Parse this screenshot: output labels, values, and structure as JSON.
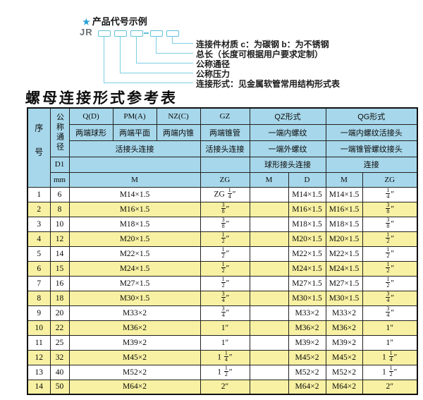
{
  "diagram": {
    "star_icon": "★",
    "heading": "产品代号示例",
    "code_prefix": "JR",
    "labels": [
      "连接件材质  c：为碳钢  b：为不锈钢",
      "总长（长度可根据用户要求定制）",
      "公称通径",
      "公称压力",
      "连接形式：见金属软管常用结构形式表"
    ]
  },
  "table_title": "螺母连接形式参考表",
  "colors": {
    "header_bg": "#a7d7ea",
    "alt_row_bg": "#f8f1a3",
    "leader_line": "#7ccfe4",
    "star_blue": "#2aa0d8"
  },
  "table": {
    "header": {
      "seq": "序号",
      "nominal": "公称通径",
      "d1": "D1",
      "mm": "mm",
      "q_code": "Q(D)",
      "pm_code": "PM(A)",
      "nz_code": "NZ(C)",
      "gz_code": "GZ",
      "qz_code": "QZ形式",
      "qg_code": "QG形式",
      "q_desc": "两端球形",
      "pm_desc": "两端平面",
      "nz_desc": "两端内锥",
      "gz_desc": "两端锥管",
      "qz_desc": "一端内螺纹",
      "qg_desc": "一端内螺纹活接头",
      "union_conn": "活接头连接",
      "gz_conn": "活接头连接",
      "qz_ext": "一端外螺纹",
      "qg_taper": "一端锥管螺纹接头",
      "qz_ball": "球形接头连接",
      "qg_conn2": "连接",
      "m_main": "M",
      "zg_gz": "ZG",
      "qz_m": "M",
      "qz_d": "D",
      "qg_m": "M",
      "qg_zg": "ZG"
    },
    "rows": [
      {
        "no": "1",
        "dn": "6",
        "m": "M14×1.5",
        "gz": "ZG 1/4″",
        "qz_m": "",
        "qz_d": "M14×1.5",
        "qg_m": "M14×1.5",
        "qg_zg": "1/4″"
      },
      {
        "no": "2",
        "dn": "8",
        "m": "M16×1.5",
        "gz": "3/8″",
        "qz_m": "",
        "qz_d": "M16×1.5",
        "qg_m": "M16×1.5",
        "qg_zg": "3/8″"
      },
      {
        "no": "3",
        "dn": "10",
        "m": "M18×1.5",
        "gz": "3/8″",
        "qz_m": "",
        "qz_d": "M18×1.5",
        "qg_m": "M18×1.5",
        "qg_zg": "3/8″"
      },
      {
        "no": "4",
        "dn": "12",
        "m": "M20×1.5",
        "gz": "1/2″",
        "qz_m": "",
        "qz_d": "M20×1.5",
        "qg_m": "M20×1.5",
        "qg_zg": "1/2″"
      },
      {
        "no": "5",
        "dn": "14",
        "m": "M22×1.5",
        "gz": "1/2″",
        "qz_m": "",
        "qz_d": "M22×1.5",
        "qg_m": "M22×1.5",
        "qg_zg": "1/2″"
      },
      {
        "no": "6",
        "dn": "15",
        "m": "M24×1.5",
        "gz": "1/2″",
        "qz_m": "",
        "qz_d": "M24×1.5",
        "qg_m": "M24×1.5",
        "qg_zg": "1/2″"
      },
      {
        "no": "7",
        "dn": "16",
        "m": "M27×1.5",
        "gz": "1/2″",
        "qz_m": "",
        "qz_d": "M27×1.5",
        "qg_m": "M27×1.5",
        "qg_zg": "1/2″"
      },
      {
        "no": "8",
        "dn": "18",
        "m": "M30×1.5",
        "gz": "3/4″",
        "qz_m": "",
        "qz_d": "M30×1.5",
        "qg_m": "M30×1.5",
        "qg_zg": "3/4″"
      },
      {
        "no": "9",
        "dn": "20",
        "m": "M33×2",
        "gz": "3/4″",
        "qz_m": "",
        "qz_d": "M33×2",
        "qg_m": "M33×2",
        "qg_zg": "3/4″"
      },
      {
        "no": "10",
        "dn": "22",
        "m": "M36×2",
        "gz": "1″",
        "qz_m": "",
        "qz_d": "M36×2",
        "qg_m": "M36×2",
        "qg_zg": "1″"
      },
      {
        "no": "11",
        "dn": "25",
        "m": "M39×2",
        "gz": "1″",
        "qz_m": "",
        "qz_d": "M39×2",
        "qg_m": "M39×2",
        "qg_zg": "1″"
      },
      {
        "no": "12",
        "dn": "32",
        "m": "M45×2",
        "gz": "1 1/4″",
        "qz_m": "",
        "qz_d": "M45×2",
        "qg_m": "M45×2",
        "qg_zg": "1 1/4″"
      },
      {
        "no": "13",
        "dn": "40",
        "m": "M52×2",
        "gz": "1 1/2″",
        "qz_m": "",
        "qz_d": "M52×2",
        "qg_m": "M52×2",
        "qg_zg": "1 1/2″"
      },
      {
        "no": "14",
        "dn": "50",
        "m": "M64×2",
        "gz": "2″",
        "qz_m": "",
        "qz_d": "M64×2",
        "qg_m": "M64×2",
        "qg_zg": "2″"
      }
    ]
  }
}
